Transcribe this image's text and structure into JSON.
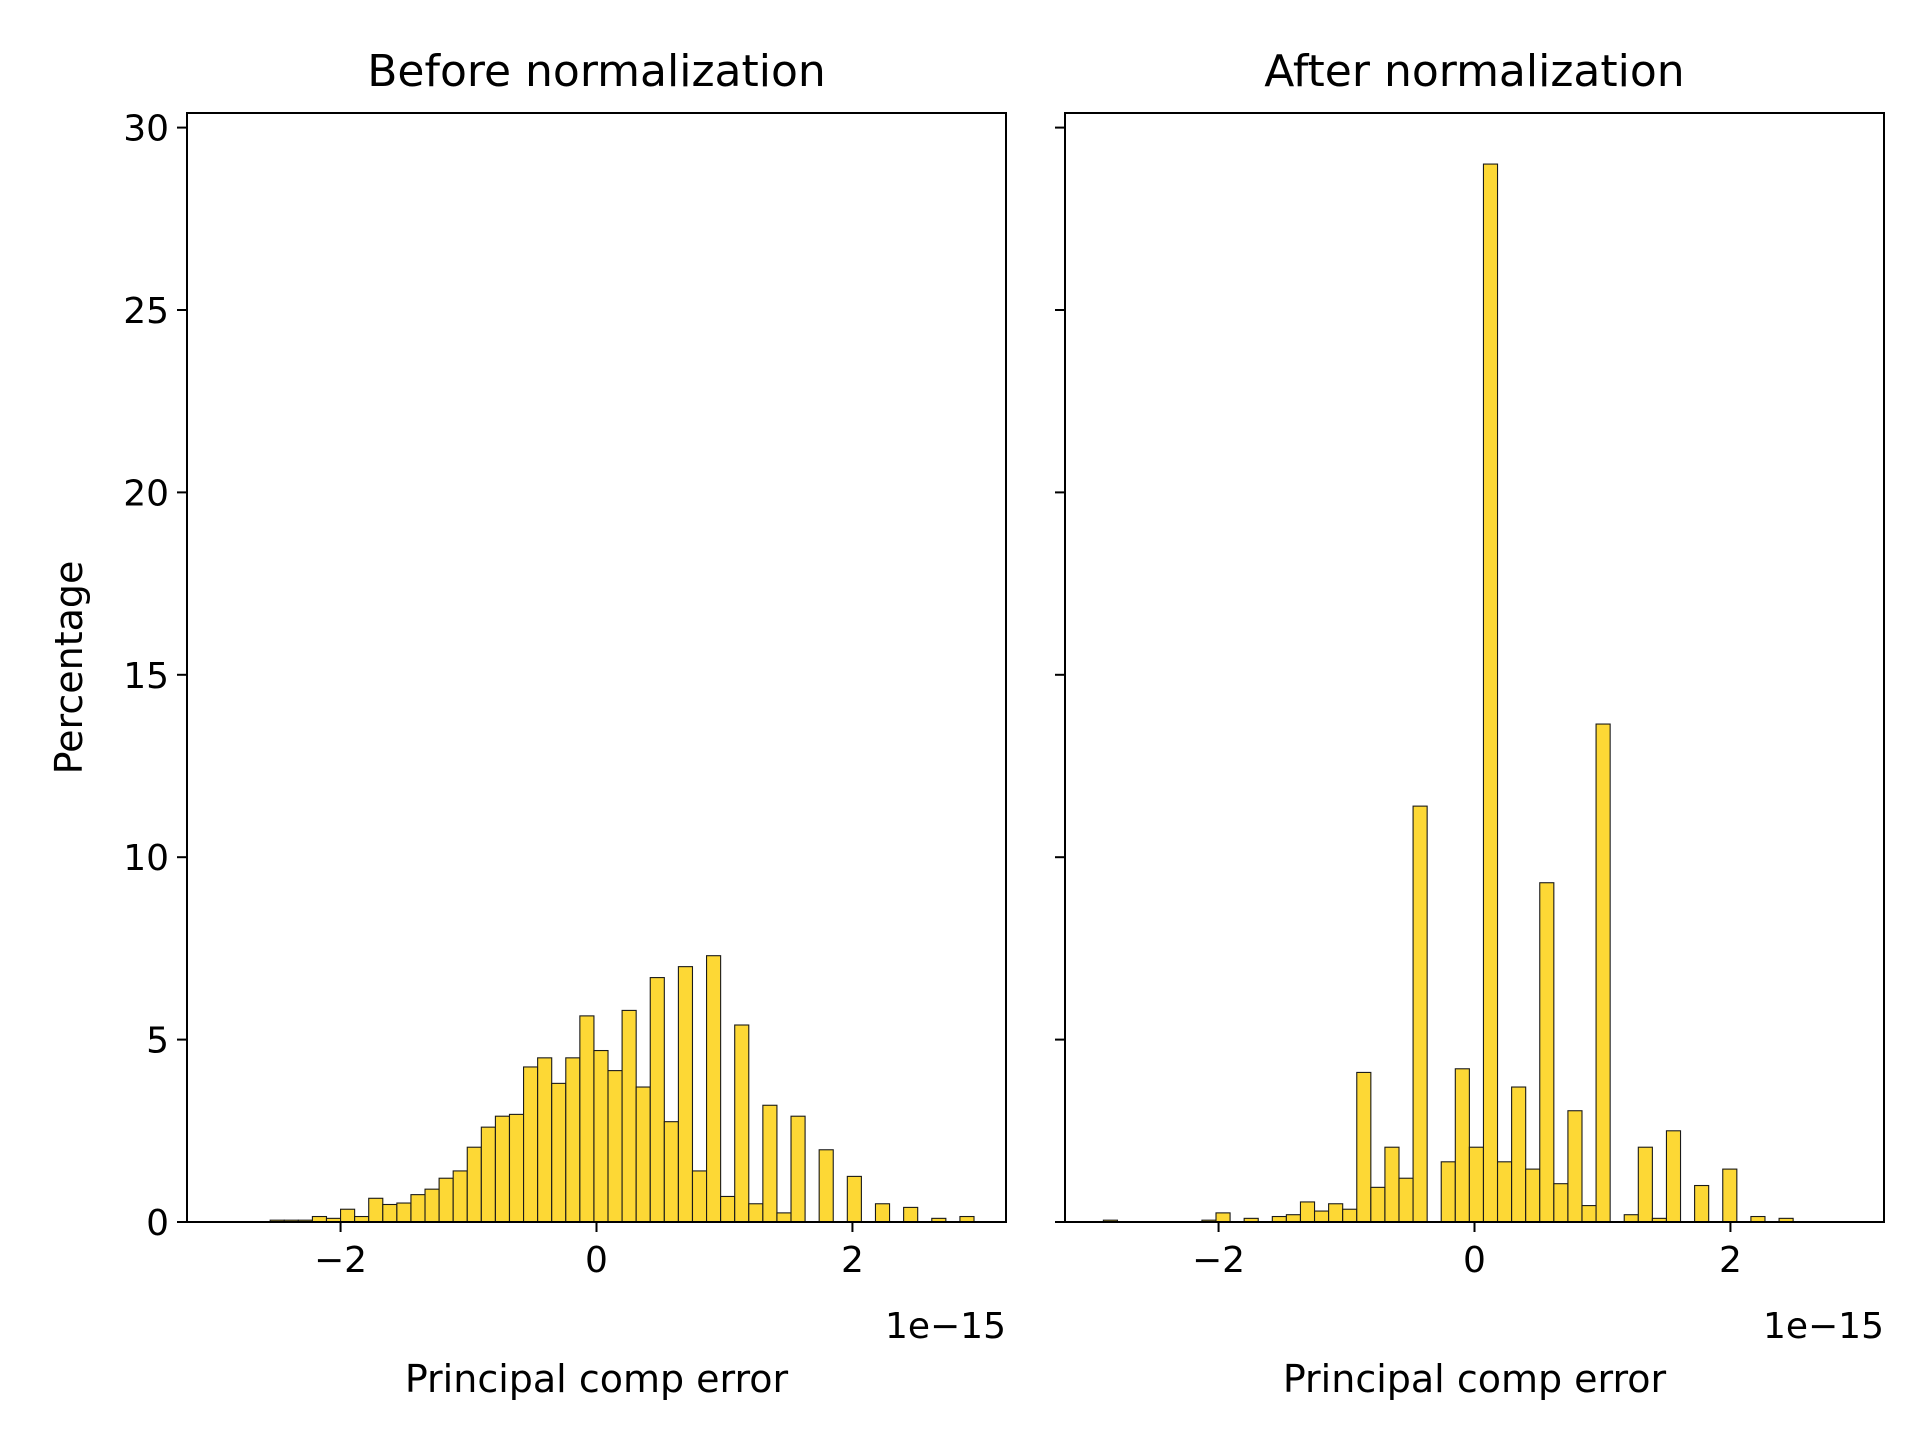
{
  "chart_data": [
    {
      "type": "bar",
      "title": "Before normalization",
      "xlabel": "Principal comp error",
      "ylabel": "Percentage",
      "x_offset_label": "1e−15",
      "xlim": [
        -3.2,
        3.2
      ],
      "ylim": [
        0,
        30.4
      ],
      "xticks": [
        -2,
        0,
        2
      ],
      "xtick_labels": [
        "−2",
        "0",
        "2"
      ],
      "yticks": [
        0,
        5,
        10,
        15,
        20,
        25,
        30
      ],
      "ytick_labels": [
        "0",
        "5",
        "10",
        "15",
        "20",
        "25",
        "30"
      ],
      "grid": false,
      "color": "#fdd835",
      "bins": [
        {
          "x0": -2.55,
          "x1": -2.44,
          "y": 0.05
        },
        {
          "x0": -2.44,
          "x1": -2.33,
          "y": 0.05
        },
        {
          "x0": -2.33,
          "x1": -2.22,
          "y": 0.05
        },
        {
          "x0": -2.22,
          "x1": -2.11,
          "y": 0.15
        },
        {
          "x0": -2.11,
          "x1": -2.0,
          "y": 0.1
        },
        {
          "x0": -2.0,
          "x1": -1.89,
          "y": 0.35
        },
        {
          "x0": -1.89,
          "x1": -1.78,
          "y": 0.15
        },
        {
          "x0": -1.78,
          "x1": -1.67,
          "y": 0.65
        },
        {
          "x0": -1.67,
          "x1": -1.56,
          "y": 0.48
        },
        {
          "x0": -1.56,
          "x1": -1.45,
          "y": 0.52
        },
        {
          "x0": -1.45,
          "x1": -1.34,
          "y": 0.75
        },
        {
          "x0": -1.34,
          "x1": -1.23,
          "y": 0.9
        },
        {
          "x0": -1.23,
          "x1": -1.12,
          "y": 1.2
        },
        {
          "x0": -1.12,
          "x1": -1.01,
          "y": 1.4
        },
        {
          "x0": -1.01,
          "x1": -0.9,
          "y": 2.05
        },
        {
          "x0": -0.9,
          "x1": -0.79,
          "y": 2.6
        },
        {
          "x0": -0.79,
          "x1": -0.68,
          "y": 2.9
        },
        {
          "x0": -0.68,
          "x1": -0.57,
          "y": 2.95
        },
        {
          "x0": -0.57,
          "x1": -0.46,
          "y": 4.25
        },
        {
          "x0": -0.46,
          "x1": -0.35,
          "y": 4.5
        },
        {
          "x0": -0.35,
          "x1": -0.24,
          "y": 3.8
        },
        {
          "x0": -0.24,
          "x1": -0.13,
          "y": 4.5
        },
        {
          "x0": -0.13,
          "x1": -0.02,
          "y": 5.65
        },
        {
          "x0": -0.02,
          "x1": 0.09,
          "y": 4.7
        },
        {
          "x0": 0.09,
          "x1": 0.2,
          "y": 4.15
        },
        {
          "x0": 0.2,
          "x1": 0.31,
          "y": 5.8
        },
        {
          "x0": 0.31,
          "x1": 0.42,
          "y": 3.7
        },
        {
          "x0": 0.42,
          "x1": 0.53,
          "y": 6.7
        },
        {
          "x0": 0.53,
          "x1": 0.64,
          "y": 2.75
        },
        {
          "x0": 0.64,
          "x1": 0.75,
          "y": 7.0
        },
        {
          "x0": 0.75,
          "x1": 0.86,
          "y": 1.4
        },
        {
          "x0": 0.86,
          "x1": 0.97,
          "y": 7.3
        },
        {
          "x0": 0.97,
          "x1": 1.08,
          "y": 0.7
        },
        {
          "x0": 1.08,
          "x1": 1.19,
          "y": 5.4
        },
        {
          "x0": 1.19,
          "x1": 1.3,
          "y": 0.5
        },
        {
          "x0": 1.3,
          "x1": 1.41,
          "y": 3.2
        },
        {
          "x0": 1.41,
          "x1": 1.52,
          "y": 0.25
        },
        {
          "x0": 1.52,
          "x1": 1.63,
          "y": 2.9
        },
        {
          "x0": 1.74,
          "x1": 1.85,
          "y": 1.98
        },
        {
          "x0": 1.96,
          "x1": 2.07,
          "y": 1.25
        },
        {
          "x0": 2.18,
          "x1": 2.29,
          "y": 0.5
        },
        {
          "x0": 2.4,
          "x1": 2.51,
          "y": 0.4
        },
        {
          "x0": 2.62,
          "x1": 2.73,
          "y": 0.1
        },
        {
          "x0": 2.84,
          "x1": 2.95,
          "y": 0.15
        }
      ]
    },
    {
      "type": "bar",
      "title": "After normalization",
      "xlabel": "Principal comp error",
      "ylabel": "",
      "x_offset_label": "1e−15",
      "xlim": [
        -3.2,
        3.2
      ],
      "ylim": [
        0,
        30.4
      ],
      "xticks": [
        -2,
        0,
        2
      ],
      "xtick_labels": [
        "−2",
        "0",
        "2"
      ],
      "yticks": [
        0,
        5,
        10,
        15,
        20,
        25,
        30
      ],
      "ytick_labels": [
        "",
        "",
        "",
        "",
        "",
        "",
        ""
      ],
      "grid": false,
      "color": "#fdd835",
      "bins": [
        {
          "x0": -2.9,
          "x1": -2.79,
          "y": 0.05
        },
        {
          "x0": -2.13,
          "x1": -2.02,
          "y": 0.05
        },
        {
          "x0": -2.02,
          "x1": -1.91,
          "y": 0.25
        },
        {
          "x0": -1.8,
          "x1": -1.69,
          "y": 0.1
        },
        {
          "x0": -1.58,
          "x1": -1.47,
          "y": 0.15
        },
        {
          "x0": -1.47,
          "x1": -1.36,
          "y": 0.2
        },
        {
          "x0": -1.36,
          "x1": -1.25,
          "y": 0.55
        },
        {
          "x0": -1.25,
          "x1": -1.14,
          "y": 0.3
        },
        {
          "x0": -1.14,
          "x1": -1.03,
          "y": 0.5
        },
        {
          "x0": -1.03,
          "x1": -0.92,
          "y": 0.35
        },
        {
          "x0": -0.92,
          "x1": -0.81,
          "y": 4.1
        },
        {
          "x0": -0.81,
          "x1": -0.7,
          "y": 0.95
        },
        {
          "x0": -0.7,
          "x1": -0.59,
          "y": 2.05
        },
        {
          "x0": -0.59,
          "x1": -0.48,
          "y": 1.2
        },
        {
          "x0": -0.48,
          "x1": -0.37,
          "y": 11.4
        },
        {
          "x0": -0.26,
          "x1": -0.15,
          "y": 1.65
        },
        {
          "x0": -0.15,
          "x1": -0.04,
          "y": 4.2
        },
        {
          "x0": -0.04,
          "x1": 0.07,
          "y": 2.05
        },
        {
          "x0": 0.07,
          "x1": 0.18,
          "y": 29.0
        },
        {
          "x0": 0.18,
          "x1": 0.29,
          "y": 1.65
        },
        {
          "x0": 0.29,
          "x1": 0.4,
          "y": 3.7
        },
        {
          "x0": 0.4,
          "x1": 0.51,
          "y": 1.45
        },
        {
          "x0": 0.51,
          "x1": 0.62,
          "y": 9.3
        },
        {
          "x0": 0.62,
          "x1": 0.73,
          "y": 1.05
        },
        {
          "x0": 0.73,
          "x1": 0.84,
          "y": 3.05
        },
        {
          "x0": 0.84,
          "x1": 0.95,
          "y": 0.45
        },
        {
          "x0": 0.95,
          "x1": 1.06,
          "y": 13.65
        },
        {
          "x0": 1.17,
          "x1": 1.28,
          "y": 0.2
        },
        {
          "x0": 1.28,
          "x1": 1.39,
          "y": 2.05
        },
        {
          "x0": 1.39,
          "x1": 1.5,
          "y": 0.1
        },
        {
          "x0": 1.5,
          "x1": 1.61,
          "y": 2.5
        },
        {
          "x0": 1.72,
          "x1": 1.83,
          "y": 1.0
        },
        {
          "x0": 1.94,
          "x1": 2.05,
          "y": 1.45
        },
        {
          "x0": 2.16,
          "x1": 2.27,
          "y": 0.15
        },
        {
          "x0": 2.38,
          "x1": 2.49,
          "y": 0.1
        }
      ]
    }
  ]
}
